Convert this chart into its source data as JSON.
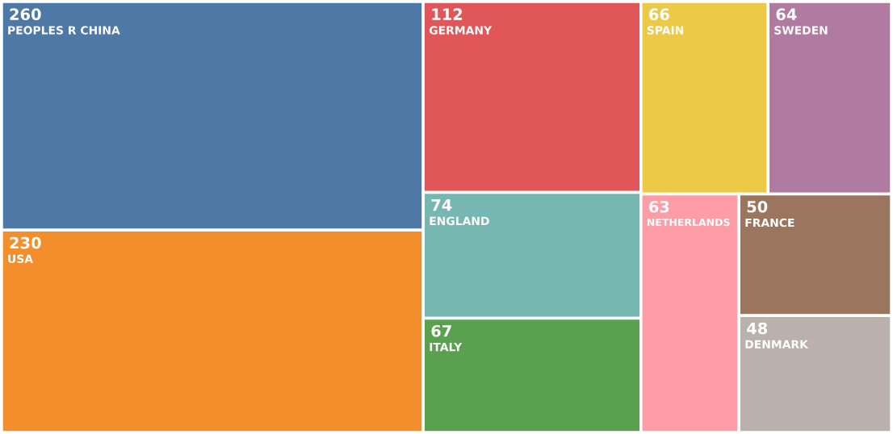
{
  "chart_data": {
    "type": "other",
    "categories": [
      "PEOPLES R CHINA",
      "USA",
      "GERMANY",
      "ENGLAND",
      "ITALY",
      "SPAIN",
      "SWEDEN",
      "NETHERLANDS",
      "FRANCE",
      "DENMARK"
    ],
    "values": [
      260,
      230,
      112,
      74,
      67,
      66,
      64,
      63,
      50,
      48
    ],
    "colors": [
      "#4e79a7",
      "#f28e2b",
      "#e15759",
      "#76b7b2",
      "#59a14f",
      "#edc948",
      "#b07aa1",
      "#ff9da7",
      "#9c755f",
      "#bab0ac"
    ],
    "data_labels": true
  }
}
